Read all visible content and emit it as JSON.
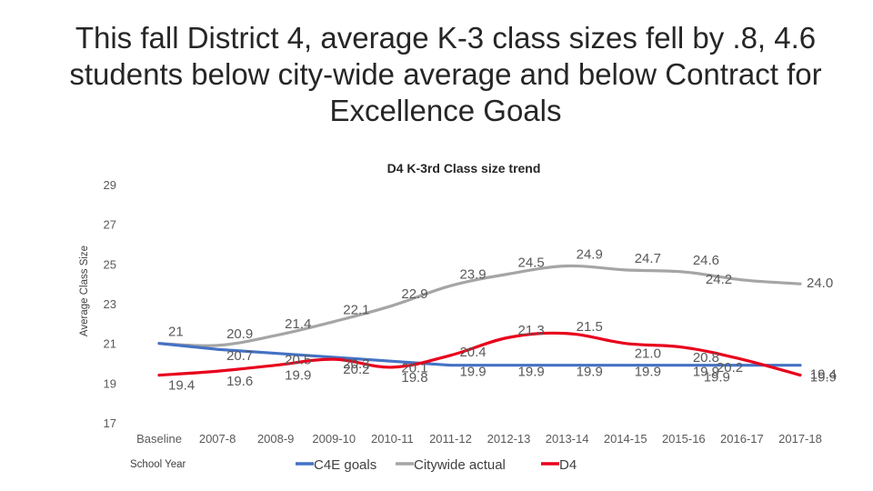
{
  "slide_title": "This fall District 4, average K-3 class sizes fell by .8, 4.6 students below city-wide average and below Contract for Excellence Goals",
  "chart_data": {
    "type": "line",
    "title": "D4 K-3rd Class size trend",
    "xlabel": "School Year",
    "ylabel": "Average Class Size",
    "ylim": [
      17,
      29
    ],
    "yticks": [
      29,
      27,
      25,
      23,
      21,
      19,
      17
    ],
    "categories": [
      "Baseline",
      "2007-8",
      "2008-9",
      "2009-10",
      "2010-11",
      "2011-12",
      "2012-13",
      "2013-14",
      "2014-15",
      "2015-16",
      "2016-17",
      "2017-18"
    ],
    "series": [
      {
        "name": "C4E goals",
        "color": "#4472C4",
        "values": [
          21,
          20.7,
          20.5,
          20.3,
          20.1,
          19.9,
          19.9,
          19.9,
          19.9,
          19.9,
          19.9,
          19.9
        ],
        "labels": [
          "",
          "20.7",
          "20.5",
          "20.3",
          "20.1",
          "19.9",
          "19.9",
          "19.9",
          "19.9",
          "19.9",
          "19.9",
          "19.9"
        ]
      },
      {
        "name": "Citywide actual",
        "color": "#A5A5A5",
        "values": [
          21,
          20.9,
          21.4,
          22.1,
          22.9,
          23.9,
          24.5,
          24.9,
          24.7,
          24.6,
          24.2,
          24.0
        ],
        "labels": [
          "21",
          "20.9",
          "21.4",
          "22.1",
          "22.9",
          "23.9",
          "24.5",
          "24.9",
          "24.7",
          "24.6",
          "24.2",
          "24.0"
        ]
      },
      {
        "name": "D4",
        "color": "#E8001C",
        "values": [
          19.4,
          19.6,
          19.9,
          20.2,
          19.8,
          20.4,
          21.3,
          21.5,
          21.0,
          20.8,
          20.2,
          19.4
        ],
        "labels": [
          "19.4",
          "19.6",
          "19.9",
          "20.2",
          "19.8",
          "20.4",
          "21.3",
          "21.5",
          "21.0",
          "20.8",
          "20.2",
          "19.4"
        ]
      }
    ],
    "legend_position": "bottom"
  }
}
